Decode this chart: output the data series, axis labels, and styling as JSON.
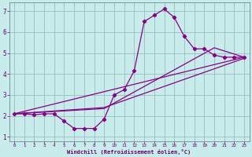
{
  "xlabel": "Windchill (Refroidissement éolien,°C)",
  "bg_color": "#c8ecec",
  "grid_color": "#9abcbc",
  "line_color": "#880088",
  "xlim": [
    -0.5,
    23.5
  ],
  "ylim": [
    0.8,
    7.4
  ],
  "xticks": [
    0,
    1,
    2,
    3,
    4,
    5,
    6,
    7,
    8,
    9,
    10,
    11,
    12,
    13,
    14,
    15,
    16,
    17,
    18,
    19,
    20,
    21,
    22,
    23
  ],
  "yticks": [
    1,
    2,
    3,
    4,
    5,
    6,
    7
  ],
  "line1_x": [
    0,
    1,
    2,
    3,
    4,
    5,
    6,
    7,
    8,
    9,
    10,
    11,
    12,
    13,
    14,
    15,
    16,
    17,
    18,
    19,
    20,
    21,
    22,
    23
  ],
  "line1_y": [
    2.1,
    2.1,
    2.05,
    2.1,
    2.1,
    1.75,
    1.4,
    1.4,
    1.4,
    1.85,
    3.0,
    3.25,
    4.15,
    6.5,
    6.8,
    7.1,
    6.7,
    5.8,
    5.2,
    5.2,
    4.9,
    4.8,
    4.8,
    4.8
  ],
  "line2_x": [
    0,
    23
  ],
  "line2_y": [
    2.1,
    4.8
  ],
  "line3_x": [
    0,
    9,
    23
  ],
  "line3_y": [
    2.1,
    2.4,
    4.75
  ],
  "line4_x": [
    0,
    9,
    20,
    23
  ],
  "line4_y": [
    2.1,
    2.35,
    5.25,
    4.8
  ]
}
